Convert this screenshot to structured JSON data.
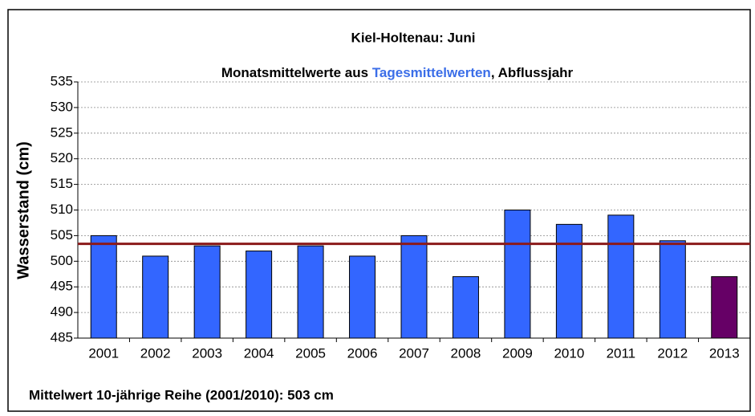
{
  "chart_data": {
    "type": "bar",
    "title": "Kiel-Holtenau: Juni",
    "subtitle_parts": [
      "Monatsmittelwerte aus ",
      "Tagesmittelwerten",
      ", Abflussjahr"
    ],
    "subtitle_colors": [
      "#000000",
      "#3b6ee8",
      "#000000"
    ],
    "ylabel": "Wasserstand (cm)",
    "footnote": "Mittelwert 10-jährige Reihe (2001/2010): 503 cm",
    "footnote_color": "#8b1a1a",
    "categories": [
      "2001",
      "2002",
      "2003",
      "2004",
      "2005",
      "2006",
      "2007",
      "2008",
      "2009",
      "2010",
      "2011",
      "2012",
      "2013"
    ],
    "values": [
      505,
      501,
      503,
      502,
      503,
      501,
      505,
      497,
      510,
      507.2,
      509,
      504,
      497
    ],
    "colors": [
      "#3366ff",
      "#3366ff",
      "#3366ff",
      "#3366ff",
      "#3366ff",
      "#3366ff",
      "#3366ff",
      "#3366ff",
      "#3366ff",
      "#3366ff",
      "#3366ff",
      "#3366ff",
      "#660066"
    ],
    "reference_line": {
      "value": 503.4,
      "color": "#8b1a1a"
    },
    "ylim": [
      485,
      535
    ],
    "yticks": [
      485,
      490,
      495,
      500,
      505,
      510,
      515,
      520,
      525,
      530,
      535
    ],
    "grid": true
  }
}
